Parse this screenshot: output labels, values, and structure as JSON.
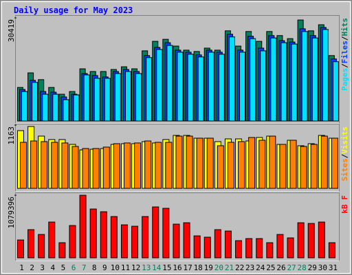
{
  "chart_data": [
    {
      "type": "bar",
      "title": "Daily usage for May 2023",
      "ylim": [
        0,
        30419
      ],
      "yticks": [
        30419
      ],
      "label_separator": "/",
      "series": [
        {
          "name": "Hits",
          "color": "#00805c",
          "values": [
            9900,
            14200,
            12200,
            9900,
            7900,
            8700,
            15400,
            14600,
            14600,
            15200,
            16000,
            15400,
            20700,
            23500,
            24100,
            22100,
            20900,
            20500,
            21500,
            20900,
            26600,
            22100,
            26400,
            23500,
            26400,
            25200,
            24300,
            29800,
            26600,
            28400,
            19300
          ]
        },
        {
          "name": "Files",
          "color": "#0040ff",
          "values": [
            9300,
            12000,
            8700,
            8500,
            7100,
            7900,
            14000,
            13400,
            13000,
            14600,
            15200,
            14600,
            19300,
            21700,
            23100,
            20900,
            20300,
            19500,
            20900,
            20300,
            25600,
            20900,
            25000,
            21500,
            25200,
            23700,
            23300,
            27200,
            25200,
            27600,
            18300
          ]
        },
        {
          "name": "Pages",
          "color": "#00e0ff",
          "values": [
            8700,
            11400,
            7900,
            7900,
            6300,
            7700,
            13600,
            12600,
            12600,
            14000,
            14600,
            14000,
            18700,
            21100,
            22300,
            20300,
            19700,
            18900,
            20300,
            19700,
            24800,
            20300,
            24300,
            20700,
            24500,
            23100,
            22700,
            26400,
            24500,
            27000,
            17500
          ]
        }
      ]
    },
    {
      "type": "bar",
      "ylim": [
        0,
        1163
      ],
      "yticks": [
        1163
      ],
      "label_separator": "/",
      "series": [
        {
          "name": "Visits",
          "color": "#ffff00",
          "values": [
            1062,
            1138,
            961,
            898,
            898,
            809,
            708,
            720,
            733,
            809,
            822,
            822,
            860,
            835,
            898,
            974,
            974,
            923,
            923,
            860,
            910,
            910,
            872,
            936,
            961,
            809,
            885,
            784,
            822,
            974,
            923
          ]
        },
        {
          "name": "Sites",
          "color": "#ff8000",
          "values": [
            847,
            872,
            860,
            847,
            835,
            771,
            733,
            733,
            759,
            822,
            835,
            835,
            872,
            847,
            847,
            961,
            961,
            923,
            923,
            784,
            847,
            860,
            936,
            885,
            961,
            809,
            885,
            771,
            809,
            961,
            923
          ]
        }
      ]
    },
    {
      "type": "bar",
      "ylim": [
        0,
        1079396
      ],
      "yticks": [
        1079396
      ],
      "categories": [
        "1",
        "2",
        "3",
        "4",
        "5",
        "6",
        "7",
        "8",
        "9",
        "10",
        "11",
        "12",
        "13",
        "14",
        "15",
        "16",
        "17",
        "18",
        "19",
        "20",
        "21",
        "22",
        "23",
        "24",
        "25",
        "26",
        "27",
        "28",
        "29",
        "30",
        "31"
      ],
      "category_label_colors": [
        "#000000",
        "#000000",
        "#000000",
        "#000000",
        "#000000",
        "#00805c",
        "#00805c",
        "#000000",
        "#000000",
        "#000000",
        "#000000",
        "#000000",
        "#00805c",
        "#00805c",
        "#000000",
        "#000000",
        "#000000",
        "#000000",
        "#000000",
        "#00805c",
        "#00805c",
        "#000000",
        "#000000",
        "#000000",
        "#000000",
        "#000000",
        "#00805c",
        "#00805c",
        "#000000",
        "#000000",
        "#000000"
      ],
      "series": [
        {
          "name": "kB F",
          "color": "#ff0000",
          "values": [
            308000,
            486000,
            403000,
            617000,
            261000,
            557000,
            1079396,
            842000,
            795000,
            712000,
            569000,
            545000,
            712000,
            878000,
            854000,
            581000,
            605000,
            379000,
            356000,
            486000,
            462000,
            296000,
            332000,
            332000,
            261000,
            403000,
            344000,
            605000,
            593000,
            617000,
            261000
          ]
        }
      ]
    }
  ]
}
